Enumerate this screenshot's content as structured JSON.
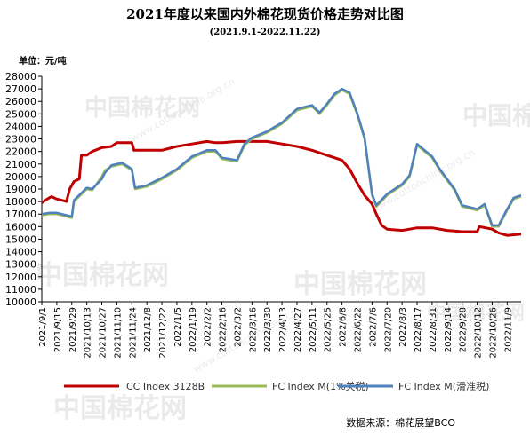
{
  "title": "2021年度以来国内外棉花现货价格走势对比图",
  "subtitle": "(2021.9.1-2022.11.22)",
  "unit_label": "单位：元/吨",
  "source": "数据来源：棉花展望BCO",
  "watermark": {
    "text": "中国棉花网",
    "url": "www.cottonchina.org.cn"
  },
  "colors": {
    "cc_index": "#c00000",
    "fc_index_1pct": "#9bbb59",
    "fc_index_slide": "#4f81bd",
    "axis": "#000000"
  },
  "chart_data": {
    "type": "line",
    "title": "2021年度以来国内外棉花现货价格走势对比图",
    "subtitle": "(2021.9.1-2022.11.22)",
    "ylabel": "单位：元/吨",
    "ylim": [
      10000,
      28000
    ],
    "y_ticks": [
      10000,
      11000,
      12000,
      13000,
      14000,
      15000,
      16000,
      17000,
      18000,
      19000,
      20000,
      21000,
      22000,
      23000,
      24000,
      25000,
      26000,
      27000,
      28000
    ],
    "x_ticks": [
      "2021/9/1",
      "2021/9/15",
      "2021/9/29",
      "2021/10/13",
      "2021/10/27",
      "2021/11/10",
      "2021/11/24",
      "2021/12/8",
      "2021/12/22",
      "2022/1/5",
      "2022/1/19",
      "2022/2/2",
      "2022/2/16",
      "2022/3/2",
      "2022/3/16",
      "2022/3/30",
      "2022/4/13",
      "2022/4/27",
      "2022/5/11",
      "2022/5/25",
      "2022/6/8",
      "2022/6/22",
      "2022/7/6",
      "2022/7/20",
      "2022/8/3",
      "2022/8/17",
      "2022/8/31",
      "2022/9/14",
      "2022/9/28",
      "2022/10/12",
      "2022/10/26",
      "2022/11/9"
    ],
    "grid": false,
    "legend_position": "bottom",
    "series": [
      {
        "name": "CC Index 3128B",
        "color": "#c00000",
        "points": [
          [
            "2021/9/1",
            17900
          ],
          [
            "2021/9/6",
            18200
          ],
          [
            "2021/9/10",
            18400
          ],
          [
            "2021/9/15",
            18200
          ],
          [
            "2021/9/20",
            18100
          ],
          [
            "2021/9/24",
            18000
          ],
          [
            "2021/9/27",
            19000
          ],
          [
            "2021/10/1",
            19600
          ],
          [
            "2021/10/6",
            19800
          ],
          [
            "2021/10/8",
            21700
          ],
          [
            "2021/10/13",
            21700
          ],
          [
            "2021/10/18",
            22000
          ],
          [
            "2021/10/27",
            22300
          ],
          [
            "2021/11/5",
            22400
          ],
          [
            "2021/11/10",
            22700
          ],
          [
            "2021/11/15",
            22700
          ],
          [
            "2021/11/24",
            22700
          ],
          [
            "2021/11/26",
            22100
          ],
          [
            "2021/12/8",
            22100
          ],
          [
            "2021/12/22",
            22100
          ],
          [
            "2022/1/5",
            22400
          ],
          [
            "2022/1/19",
            22600
          ],
          [
            "2022/2/2",
            22800
          ],
          [
            "2022/2/10",
            22700
          ],
          [
            "2022/2/16",
            22700
          ],
          [
            "2022/3/2",
            22800
          ],
          [
            "2022/3/16",
            22800
          ],
          [
            "2022/3/30",
            22800
          ],
          [
            "2022/4/13",
            22600
          ],
          [
            "2022/4/27",
            22400
          ],
          [
            "2022/5/11",
            22100
          ],
          [
            "2022/5/25",
            21700
          ],
          [
            "2022/6/8",
            21300
          ],
          [
            "2022/6/15",
            20600
          ],
          [
            "2022/6/22",
            19500
          ],
          [
            "2022/6/29",
            18500
          ],
          [
            "2022/7/6",
            17800
          ],
          [
            "2022/7/10",
            17000
          ],
          [
            "2022/7/15",
            16100
          ],
          [
            "2022/7/20",
            15800
          ],
          [
            "2022/8/3",
            15700
          ],
          [
            "2022/8/10",
            15800
          ],
          [
            "2022/8/17",
            15900
          ],
          [
            "2022/8/31",
            15900
          ],
          [
            "2022/9/14",
            15700
          ],
          [
            "2022/9/28",
            15600
          ],
          [
            "2022/10/12",
            15600
          ],
          [
            "2022/10/14",
            16000
          ],
          [
            "2022/10/26",
            15800
          ],
          [
            "2022/11/1",
            15500
          ],
          [
            "2022/11/9",
            15300
          ],
          [
            "2022/11/22",
            15400
          ]
        ]
      },
      {
        "name": "FC Index M(1%关税)",
        "color": "#9bbb59",
        "points": [
          [
            "2021/9/1",
            16900
          ],
          [
            "2021/9/8",
            17000
          ],
          [
            "2021/9/15",
            17000
          ],
          [
            "2021/9/29",
            16700
          ],
          [
            "2021/10/1",
            18000
          ],
          [
            "2021/10/13",
            19000
          ],
          [
            "2021/10/18",
            18900
          ],
          [
            "2021/10/27",
            20000
          ],
          [
            "2021/10/30",
            20500
          ],
          [
            "2021/11/5",
            20800
          ],
          [
            "2021/11/10",
            20900
          ],
          [
            "2021/11/15",
            21000
          ],
          [
            "2021/11/24",
            20500
          ],
          [
            "2021/11/27",
            19000
          ],
          [
            "2021/12/8",
            19200
          ],
          [
            "2021/12/22",
            19800
          ],
          [
            "2022/1/5",
            20500
          ],
          [
            "2022/1/19",
            21500
          ],
          [
            "2022/2/2",
            22000
          ],
          [
            "2022/2/10",
            22000
          ],
          [
            "2022/2/16",
            21400
          ],
          [
            "2022/3/2",
            21200
          ],
          [
            "2022/3/9",
            22500
          ],
          [
            "2022/3/16",
            23000
          ],
          [
            "2022/3/30",
            23500
          ],
          [
            "2022/4/13",
            24200
          ],
          [
            "2022/4/27",
            25300
          ],
          [
            "2022/5/11",
            25600
          ],
          [
            "2022/5/18",
            25000
          ],
          [
            "2022/5/25",
            25700
          ],
          [
            "2022/6/1",
            26500
          ],
          [
            "2022/6/8",
            26900
          ],
          [
            "2022/6/15",
            26600
          ],
          [
            "2022/6/22",
            25000
          ],
          [
            "2022/6/29",
            23000
          ],
          [
            "2022/7/6",
            18500
          ],
          [
            "2022/7/10",
            17600
          ],
          [
            "2022/7/20",
            18500
          ],
          [
            "2022/8/3",
            19300
          ],
          [
            "2022/8/10",
            20000
          ],
          [
            "2022/8/17",
            22500
          ],
          [
            "2022/8/31",
            21500
          ],
          [
            "2022/9/7",
            20500
          ],
          [
            "2022/9/14",
            19700
          ],
          [
            "2022/9/21",
            18900
          ],
          [
            "2022/9/28",
            17600
          ],
          [
            "2022/10/12",
            17300
          ],
          [
            "2022/10/19",
            17700
          ],
          [
            "2022/10/26",
            16000
          ],
          [
            "2022/11/1",
            16000
          ],
          [
            "2022/11/9",
            17300
          ],
          [
            "2022/11/15",
            18200
          ],
          [
            "2022/11/22",
            18400
          ]
        ]
      },
      {
        "name": "FC Index M(滑准税)",
        "color": "#4f81bd",
        "points": [
          [
            "2021/9/1",
            17000
          ],
          [
            "2021/9/8",
            17100
          ],
          [
            "2021/9/15",
            17100
          ],
          [
            "2021/9/29",
            16800
          ],
          [
            "2021/10/1",
            18100
          ],
          [
            "2021/10/13",
            19100
          ],
          [
            "2021/10/18",
            19000
          ],
          [
            "2021/10/27",
            19800
          ],
          [
            "2021/10/30",
            20300
          ],
          [
            "2021/11/5",
            20900
          ],
          [
            "2021/11/10",
            21000
          ],
          [
            "2021/11/15",
            21100
          ],
          [
            "2021/11/24",
            20600
          ],
          [
            "2021/11/27",
            19100
          ],
          [
            "2021/12/8",
            19300
          ],
          [
            "2021/12/22",
            19900
          ],
          [
            "2022/1/5",
            20600
          ],
          [
            "2022/1/19",
            21600
          ],
          [
            "2022/2/2",
            22100
          ],
          [
            "2022/2/10",
            22100
          ],
          [
            "2022/2/16",
            21500
          ],
          [
            "2022/3/2",
            21300
          ],
          [
            "2022/3/9",
            22600
          ],
          [
            "2022/3/16",
            23100
          ],
          [
            "2022/3/30",
            23600
          ],
          [
            "2022/4/13",
            24300
          ],
          [
            "2022/4/27",
            25400
          ],
          [
            "2022/5/11",
            25700
          ],
          [
            "2022/5/18",
            25100
          ],
          [
            "2022/5/25",
            25800
          ],
          [
            "2022/6/1",
            26600
          ],
          [
            "2022/6/8",
            27000
          ],
          [
            "2022/6/15",
            26700
          ],
          [
            "2022/6/22",
            25100
          ],
          [
            "2022/6/29",
            23100
          ],
          [
            "2022/7/6",
            18600
          ],
          [
            "2022/7/10",
            17700
          ],
          [
            "2022/7/20",
            18600
          ],
          [
            "2022/8/3",
            19400
          ],
          [
            "2022/8/10",
            20100
          ],
          [
            "2022/8/17",
            22600
          ],
          [
            "2022/8/31",
            21600
          ],
          [
            "2022/9/7",
            20600
          ],
          [
            "2022/9/14",
            19800
          ],
          [
            "2022/9/21",
            19000
          ],
          [
            "2022/9/28",
            17700
          ],
          [
            "2022/10/12",
            17400
          ],
          [
            "2022/10/19",
            17800
          ],
          [
            "2022/10/26",
            16100
          ],
          [
            "2022/11/1",
            16100
          ],
          [
            "2022/11/9",
            17400
          ],
          [
            "2022/11/15",
            18300
          ],
          [
            "2022/11/22",
            18500
          ]
        ]
      }
    ]
  }
}
